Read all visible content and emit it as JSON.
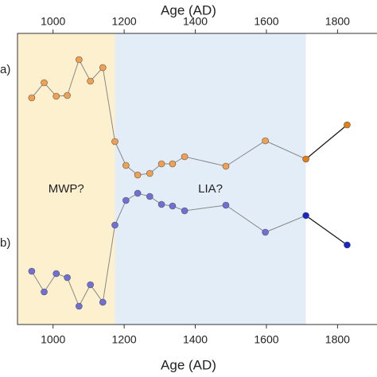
{
  "chart_data": {
    "type": "line",
    "x_label": "Age (AD)",
    "xlim": [
      900,
      1911
    ],
    "xticks": [
      1000,
      1200,
      1400,
      1600,
      1800
    ],
    "ylim": [
      0,
      366
    ],
    "periods": [
      {
        "label": "MWP?",
        "range": [
          900,
          1174
        ],
        "color": "#fdf0cf"
      },
      {
        "label": "LIA?",
        "range": [
          1174,
          1711
        ],
        "color": "#e3edf8"
      }
    ],
    "x": [
      940,
      975,
      1009,
      1040,
      1073,
      1105,
      1140,
      1174,
      1205,
      1238,
      1272,
      1305,
      1336,
      1370,
      1486,
      1597,
      1711,
      1827
    ],
    "series": [
      {
        "name": "a)",
        "color": "#f0a050",
        "last_color": "#e57e12",
        "values": [
          285,
          304,
          287,
          288,
          333,
          306,
          323,
          230,
          200,
          188,
          190,
          202,
          202,
          211,
          199,
          231,
          208,
          251
        ]
      },
      {
        "name": "b)",
        "color": "#6f6fd6",
        "last_color": "#1a26c8",
        "values": [
          67,
          41,
          64,
          59,
          23,
          50,
          28,
          125,
          156,
          165,
          161,
          151,
          149,
          143,
          150,
          116,
          137,
          100
        ]
      }
    ]
  }
}
